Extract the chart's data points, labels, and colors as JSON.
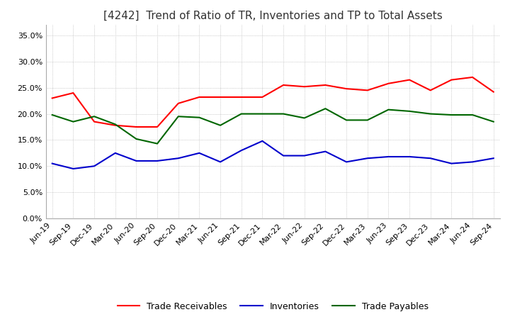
{
  "title": "[4242]  Trend of Ratio of TR, Inventories and TP to Total Assets",
  "x_labels": [
    "Jun-19",
    "Sep-19",
    "Dec-19",
    "Mar-20",
    "Jun-20",
    "Sep-20",
    "Dec-20",
    "Mar-21",
    "Jun-21",
    "Sep-21",
    "Dec-21",
    "Mar-22",
    "Jun-22",
    "Sep-22",
    "Dec-22",
    "Mar-23",
    "Jun-23",
    "Sep-23",
    "Dec-23",
    "Mar-24",
    "Jun-24",
    "Sep-24"
  ],
  "trade_receivables": [
    0.23,
    0.24,
    0.185,
    0.178,
    0.175,
    0.175,
    0.22,
    0.232,
    0.232,
    0.232,
    0.232,
    0.255,
    0.252,
    0.255,
    0.248,
    0.245,
    0.258,
    0.265,
    0.245,
    0.265,
    0.27,
    0.242
  ],
  "inventories": [
    0.105,
    0.095,
    0.1,
    0.125,
    0.11,
    0.11,
    0.115,
    0.125,
    0.108,
    0.13,
    0.148,
    0.12,
    0.12,
    0.128,
    0.108,
    0.115,
    0.118,
    0.118,
    0.115,
    0.105,
    0.108,
    0.115
  ],
  "trade_payables": [
    0.198,
    0.185,
    0.195,
    0.18,
    0.152,
    0.143,
    0.195,
    0.193,
    0.178,
    0.2,
    0.2,
    0.2,
    0.192,
    0.21,
    0.188,
    0.188,
    0.208,
    0.205,
    0.2,
    0.198,
    0.198,
    0.185
  ],
  "ylim": [
    0.0,
    0.37
  ],
  "yticks": [
    0.0,
    0.05,
    0.1,
    0.15,
    0.2,
    0.25,
    0.3,
    0.35
  ],
  "color_tr": "#ff0000",
  "color_inv": "#0000cc",
  "color_tp": "#006600",
  "bg_color": "#ffffff",
  "grid_color": "#aaaaaa",
  "legend_labels": [
    "Trade Receivables",
    "Inventories",
    "Trade Payables"
  ],
  "title_fontsize": 11,
  "tick_fontsize": 8,
  "legend_fontsize": 9
}
